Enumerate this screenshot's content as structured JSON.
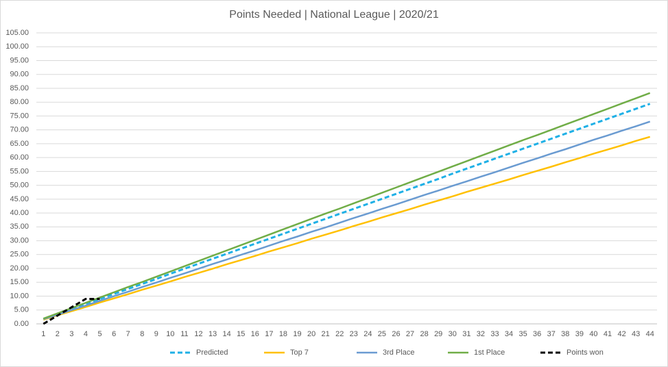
{
  "chart_data": {
    "type": "line",
    "title": "Points Needed  | National League | 2020/21",
    "categories": [
      "1",
      "2",
      "3",
      "4",
      "5",
      "6",
      "7",
      "8",
      "9",
      "10",
      "11",
      "12",
      "13",
      "14",
      "15",
      "16",
      "17",
      "18",
      "19",
      "20",
      "21",
      "22",
      "23",
      "24",
      "25",
      "26",
      "27",
      "28",
      "29",
      "30",
      "31",
      "32",
      "33",
      "34",
      "35",
      "36",
      "37",
      "38",
      "39",
      "40",
      "41",
      "42",
      "43",
      "44"
    ],
    "series": [
      {
        "name": "Predicted",
        "color": "#1fb0e6",
        "dashed": true,
        "values": [
          1.8,
          3.6,
          5.4,
          7.2,
          9.0,
          10.8,
          12.6,
          14.4,
          16.2,
          18.1,
          19.9,
          21.7,
          23.5,
          25.3,
          27.1,
          28.9,
          30.7,
          32.5,
          34.3,
          36.1,
          37.9,
          39.7,
          41.5,
          43.3,
          45.1,
          46.9,
          48.7,
          50.5,
          52.3,
          54.2,
          56.0,
          57.8,
          59.6,
          61.4,
          63.2,
          65.0,
          66.8,
          68.6,
          70.4,
          72.2,
          74.0,
          75.8,
          77.6,
          79.4
        ]
      },
      {
        "name": "Top 7",
        "color": "#ffc000",
        "dashed": false,
        "values": [
          1.5,
          3.1,
          4.6,
          6.1,
          7.7,
          9.2,
          10.7,
          12.3,
          13.8,
          15.3,
          16.9,
          18.4,
          19.9,
          21.5,
          23.0,
          24.5,
          26.1,
          27.6,
          29.1,
          30.7,
          32.2,
          33.7,
          35.3,
          36.8,
          38.4,
          39.9,
          41.4,
          43.0,
          44.5,
          46.0,
          47.6,
          49.1,
          50.6,
          52.1,
          53.7,
          55.2,
          56.7,
          58.3,
          59.8,
          61.4,
          62.9,
          64.4,
          66.0,
          67.5
        ]
      },
      {
        "name": "3rd Place",
        "color": "#6a9bd1",
        "dashed": false,
        "values": [
          1.7,
          3.3,
          5.0,
          6.6,
          8.3,
          10.0,
          11.6,
          13.3,
          14.9,
          16.6,
          18.2,
          19.9,
          21.6,
          23.2,
          24.9,
          26.5,
          28.2,
          29.9,
          31.5,
          33.2,
          34.8,
          36.5,
          38.2,
          39.8,
          41.5,
          43.1,
          44.8,
          46.5,
          48.1,
          49.8,
          51.4,
          53.1,
          54.7,
          56.4,
          58.1,
          59.7,
          61.4,
          63.0,
          64.7,
          66.4,
          68.0,
          69.7,
          71.3,
          73.0
        ]
      },
      {
        "name": "1st Place",
        "color": "#70ad47",
        "dashed": false,
        "values": [
          1.9,
          3.8,
          5.7,
          7.6,
          9.5,
          11.4,
          13.3,
          15.1,
          17.0,
          18.9,
          20.8,
          22.7,
          24.6,
          26.5,
          28.4,
          30.3,
          32.2,
          34.1,
          36.0,
          37.9,
          39.8,
          41.6,
          43.5,
          45.4,
          47.3,
          49.2,
          51.1,
          53.0,
          54.9,
          56.8,
          58.7,
          60.6,
          62.5,
          64.4,
          66.3,
          68.1,
          70.0,
          71.9,
          73.8,
          75.7,
          77.6,
          79.5,
          81.4,
          83.3
        ]
      },
      {
        "name": "Points won",
        "color": "#000000",
        "dashed": true,
        "values": [
          0,
          3,
          6,
          9,
          9,
          null,
          null,
          null,
          null,
          null,
          null,
          null,
          null,
          null,
          null,
          null,
          null,
          null,
          null,
          null,
          null,
          null,
          null,
          null,
          null,
          null,
          null,
          null,
          null,
          null,
          null,
          null,
          null,
          null,
          null,
          null,
          null,
          null,
          null,
          null,
          null,
          null,
          null,
          null
        ]
      }
    ],
    "ylim": [
      0,
      105
    ],
    "yticks": [
      {
        "value": 0,
        "label": "0.00"
      },
      {
        "value": 5,
        "label": "5.00"
      },
      {
        "value": 10,
        "label": "10.00"
      },
      {
        "value": 15,
        "label": "15.00"
      },
      {
        "value": 20,
        "label": "20.00"
      },
      {
        "value": 25,
        "label": "25.00"
      },
      {
        "value": 30,
        "label": "30.00"
      },
      {
        "value": 35,
        "label": "35.00"
      },
      {
        "value": 40,
        "label": "40.00"
      },
      {
        "value": 45,
        "label": "45.00"
      },
      {
        "value": 50,
        "label": "50.00"
      },
      {
        "value": 55,
        "label": "55.00"
      },
      {
        "value": 60,
        "label": "60.00"
      },
      {
        "value": 65,
        "label": "65.00"
      },
      {
        "value": 70,
        "label": "70.00"
      },
      {
        "value": 75,
        "label": "75.00"
      },
      {
        "value": 80,
        "label": "80.00"
      },
      {
        "value": 85,
        "label": "85.00"
      },
      {
        "value": 90,
        "label": "90.00"
      },
      {
        "value": 95,
        "label": "95.00"
      },
      {
        "value": 100,
        "label": "100.00"
      },
      {
        "value": 105,
        "label": "105.00"
      }
    ],
    "grid": true,
    "legend": "bottom"
  }
}
